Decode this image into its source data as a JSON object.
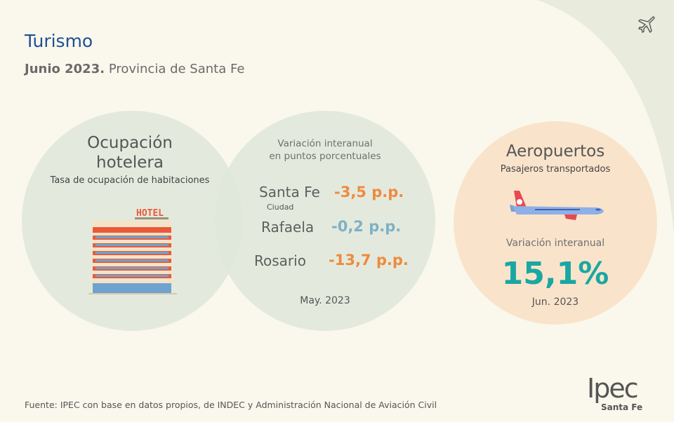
{
  "header": {
    "title": "Turismo",
    "period_bold": "Junio 2023.",
    "region": "Provincia de Santa Fe"
  },
  "hotel": {
    "title_line1": "Ocupación",
    "title_line2": "hotelera",
    "subtitle": "Tasa de ocupación de habitaciones",
    "sign_text": "HOTEL"
  },
  "variation": {
    "label_line1": "Variación interanual",
    "label_line2": "en puntos porcentuales",
    "rows": [
      {
        "city": "Santa Fe",
        "sub": "Ciudad",
        "value": "-3,5 p.p.",
        "color": "#ef8a3e"
      },
      {
        "city": "Rafaela",
        "value": "-0,2 p.p.",
        "color": "#7fb0c6"
      },
      {
        "city": "Rosario",
        "value": "-13,7 p.p.",
        "color": "#ef8a3e"
      }
    ],
    "period": "May. 2023"
  },
  "airports": {
    "title": "Aeropuertos",
    "subtitle": "Pasajeros transportados",
    "label": "Variación interanual",
    "value": "15,1%",
    "period": "Jun. 2023",
    "value_color": "#1aa7a3"
  },
  "footer": {
    "source": "Fuente: IPEC con base en datos propios, de INDEC y  Administración Nacional de Aviación Civil"
  },
  "logo": {
    "name": "Ipec",
    "region": "Santa Fe"
  },
  "icons": {
    "corner": "airplane-icon"
  }
}
